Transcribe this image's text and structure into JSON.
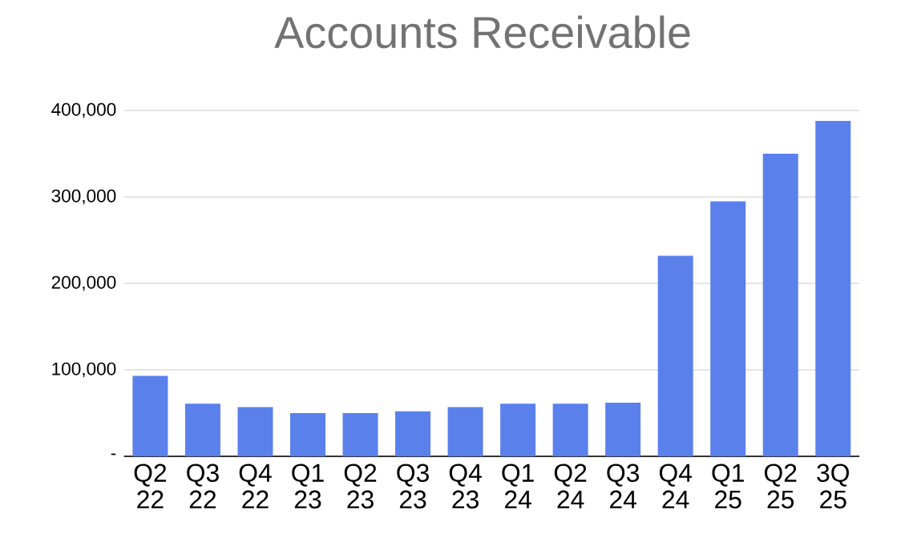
{
  "chart_data": {
    "type": "bar",
    "title": "Accounts Receivable",
    "categories": [
      "Q2 22",
      "Q3 22",
      "Q4 22",
      "Q1 23",
      "Q2 23",
      "Q3 23",
      "Q4 23",
      "Q1 24",
      "Q2 24",
      "Q3 24",
      "Q4 24",
      "Q1 25",
      "Q2 25",
      "3Q 25"
    ],
    "values": [
      93000,
      61000,
      57000,
      50000,
      50000,
      52000,
      57000,
      61000,
      61000,
      62000,
      232000,
      295000,
      350000,
      388000
    ],
    "color": "#5a80ec",
    "ylim": [
      0,
      400000
    ],
    "yticks": [
      {
        "value": 0,
        "label": "-"
      },
      {
        "value": 100000,
        "label": "100,000"
      },
      {
        "value": 200000,
        "label": "200,000"
      },
      {
        "value": 300000,
        "label": "300,000"
      },
      {
        "value": 400000,
        "label": "400,000"
      }
    ],
    "grid": "y"
  }
}
